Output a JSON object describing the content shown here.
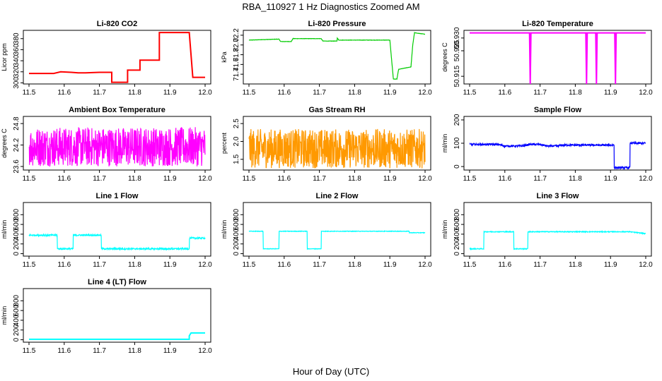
{
  "main_title": "RBA_110927  1 Hz Diagnostics Zoomed AM",
  "x_axis_label": "Hour of Day (UTC)",
  "chart_data": [
    {
      "type": "line",
      "title": "Li-820 CO2",
      "ylabel": "Licor ppm",
      "color": "#ff0000",
      "xlim": [
        11.5,
        12.0
      ],
      "ylim": [
        298,
        395
      ],
      "xticks": [
        "11.5",
        "11.6",
        "11.7",
        "11.8",
        "11.9",
        "12.0"
      ],
      "yticks": [
        300,
        320,
        340,
        360,
        380
      ],
      "noise": 0,
      "x": [
        11.5,
        11.57,
        11.59,
        11.62,
        11.64,
        11.66,
        11.7,
        11.735,
        11.735,
        11.78,
        11.78,
        11.815,
        11.815,
        11.87,
        11.87,
        11.955,
        11.965,
        12.0
      ],
      "y": [
        317,
        317,
        320,
        319,
        318,
        318,
        319,
        319,
        301,
        301,
        323,
        323,
        341,
        341,
        391,
        391,
        310,
        310
      ]
    },
    {
      "type": "line",
      "title": "Li-820 Pressure",
      "ylabel": "kPa",
      "color": "#00cc00",
      "xlim": [
        11.5,
        12.0
      ],
      "ylim": [
        71.2,
        72.3
      ],
      "xticks": [
        "11.5",
        "11.6",
        "11.7",
        "11.8",
        "11.9",
        "12.0"
      ],
      "yticks": [
        "71.4",
        "71.6",
        "71.8",
        "72.0",
        "72.2"
      ],
      "noise": 0.003,
      "x": [
        11.5,
        11.585,
        11.59,
        11.62,
        11.625,
        11.705,
        11.71,
        11.75,
        11.75,
        11.755,
        11.9,
        11.91,
        11.92,
        11.925,
        11.96,
        11.965,
        11.97,
        12.0
      ],
      "y": [
        72.1,
        72.12,
        72.07,
        72.07,
        72.13,
        72.13,
        72.08,
        72.08,
        72.15,
        72.1,
        72.1,
        71.3,
        71.3,
        71.5,
        71.55,
        72.0,
        72.25,
        72.22
      ]
    },
    {
      "type": "line",
      "title": "Li-820 Temperature",
      "ylabel": "degrees C",
      "color": "#ff00ff",
      "xlim": [
        11.5,
        12.0
      ],
      "ylim": [
        50.912,
        50.933
      ],
      "xticks": [
        "11.5",
        "11.6",
        "11.7",
        "11.8",
        "11.9",
        "12.0"
      ],
      "yticks": [
        "50.915",
        "50.925",
        "50.930"
      ],
      "noise": 0,
      "x": [
        11.5,
        11.67,
        11.672,
        11.674,
        11.83,
        11.832,
        11.834,
        11.858,
        11.86,
        11.862,
        11.912,
        11.914,
        11.916,
        12.0
      ],
      "y": [
        50.932,
        50.932,
        50.912,
        50.932,
        50.932,
        50.912,
        50.932,
        50.932,
        50.912,
        50.932,
        50.932,
        50.912,
        50.932,
        50.932
      ]
    },
    {
      "type": "line",
      "title": "Ambient Box Temperature",
      "ylabel": "degrees C",
      "color": "#ff00ff",
      "xlim": [
        11.5,
        12.0
      ],
      "ylim": [
        23.5,
        25.0
      ],
      "xticks": [
        "11.5",
        "11.6",
        "11.7",
        "11.8",
        "11.9",
        "12.0"
      ],
      "yticks": [
        "23.6",
        "24.2",
        "24.8"
      ],
      "noise": 0.55,
      "x": [
        11.5,
        12.0
      ],
      "y": [
        24.15,
        24.15
      ]
    },
    {
      "type": "line",
      "title": "Gas Stream RH",
      "ylabel": "percent",
      "color": "#ff9900",
      "xlim": [
        11.5,
        12.0
      ],
      "ylim": [
        1.2,
        2.7
      ],
      "xticks": [
        "11.5",
        "11.6",
        "11.7",
        "11.8",
        "11.9",
        "12.0"
      ],
      "yticks": [
        "1.5",
        "2.0",
        "2.5"
      ],
      "noise": 0.55,
      "x": [
        11.5,
        12.0
      ],
      "y": [
        1.8,
        1.8
      ]
    },
    {
      "type": "line",
      "title": "Sample Flow",
      "ylabel": "ml/min",
      "color": "#0000ff",
      "xlim": [
        11.5,
        12.0
      ],
      "ylim": [
        -15,
        215
      ],
      "xticks": [
        "11.5",
        "11.6",
        "11.7",
        "11.8",
        "11.9",
        "12.0"
      ],
      "yticks": [
        "0",
        "100",
        "200"
      ],
      "noise": 4,
      "x": [
        11.5,
        11.58,
        11.6,
        11.65,
        11.67,
        11.7,
        11.72,
        11.75,
        11.76,
        11.9,
        11.91,
        11.91,
        11.955,
        11.955,
        12.0
      ],
      "y": [
        95,
        95,
        88,
        88,
        95,
        95,
        88,
        88,
        92,
        92,
        92,
        -5,
        -5,
        100,
        100
      ]
    },
    {
      "type": "line",
      "title": "Line 1 Flow",
      "ylabel": "ml/min",
      "color": "#00ffff",
      "xlim": [
        11.5,
        12.0
      ],
      "ylim": [
        -50,
        1050
      ],
      "xticks": [
        "11.5",
        "11.6",
        "11.7",
        "11.8",
        "11.9",
        "12.0"
      ],
      "yticks": [
        "0",
        "200",
        "400",
        "600",
        "800"
      ],
      "noise": 15,
      "x": [
        11.5,
        11.58,
        11.58,
        11.625,
        11.625,
        11.705,
        11.705,
        11.955,
        11.955,
        12.0
      ],
      "y": [
        380,
        380,
        100,
        100,
        380,
        380,
        100,
        100,
        320,
        320
      ]
    },
    {
      "type": "line",
      "title": "Line 2 Flow",
      "ylabel": "ml/min",
      "color": "#00ffff",
      "xlim": [
        11.5,
        12.0
      ],
      "ylim": [
        -50,
        1050
      ],
      "xticks": [
        "11.5",
        "11.6",
        "11.7",
        "11.8",
        "11.9",
        "12.0"
      ],
      "yticks": [
        "0",
        "200",
        "400",
        "600",
        "800"
      ],
      "noise": 5,
      "x": [
        11.5,
        11.54,
        11.54,
        11.585,
        11.585,
        11.665,
        11.665,
        11.705,
        11.705,
        11.955,
        11.955,
        12.0
      ],
      "y": [
        460,
        460,
        100,
        100,
        460,
        460,
        100,
        100,
        460,
        460,
        430,
        430
      ]
    },
    {
      "type": "line",
      "title": "Line 3 Flow",
      "ylabel": "ml/min",
      "color": "#00ffff",
      "xlim": [
        11.5,
        12.0
      ],
      "ylim": [
        -50,
        1050
      ],
      "xticks": [
        "11.5",
        "11.6",
        "11.7",
        "11.8",
        "11.9",
        "12.0"
      ],
      "yticks": [
        "0",
        "200",
        "400",
        "600",
        "800"
      ],
      "noise": 8,
      "x": [
        11.5,
        11.54,
        11.54,
        11.625,
        11.625,
        11.665,
        11.665,
        11.955,
        12.0
      ],
      "y": [
        100,
        100,
        450,
        450,
        100,
        100,
        450,
        450,
        410
      ]
    },
    {
      "type": "line",
      "title": "Line 4 (LT) Flow",
      "ylabel": "ml/min",
      "color": "#00ffff",
      "xlim": [
        11.5,
        12.0
      ],
      "ylim": [
        -50,
        1050
      ],
      "xticks": [
        "11.5",
        "11.6",
        "11.7",
        "11.8",
        "11.9",
        "12.0"
      ],
      "yticks": [
        "0",
        "200",
        "400",
        "600",
        "800"
      ],
      "noise": 0,
      "x": [
        11.5,
        11.955,
        11.955,
        11.96,
        12.0
      ],
      "y": [
        10,
        10,
        80,
        140,
        140
      ]
    }
  ]
}
